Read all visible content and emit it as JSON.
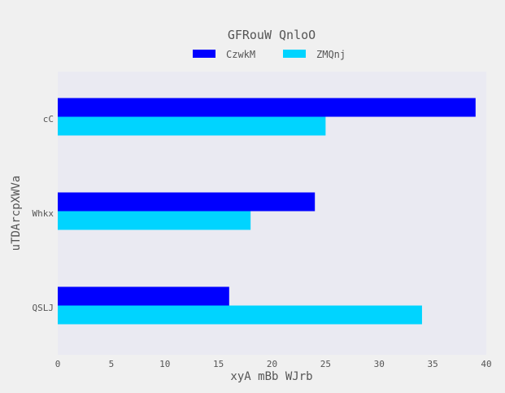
{
  "chart_data": {
    "type": "bar",
    "orientation": "horizontal",
    "title": "GFRouW QnloO",
    "xlabel": "xyA mBb WJrb",
    "ylabel": "uTDArcpXWVa",
    "categories": [
      "cC",
      "Whkx",
      "QSLJ"
    ],
    "series": [
      {
        "name": "CzwkM",
        "color": "#0000ff",
        "values": [
          39,
          24,
          16
        ]
      },
      {
        "name": "ZMQnj",
        "color": "#00d4ff",
        "values": [
          25,
          18,
          34
        ]
      }
    ],
    "xlim": [
      0,
      40
    ],
    "xticks": [
      "0",
      "5",
      "10",
      "15",
      "20",
      "25",
      "30",
      "35",
      "40"
    ],
    "grid": false,
    "legend_position": "top-center",
    "plot_background": "#eaeaf2"
  }
}
